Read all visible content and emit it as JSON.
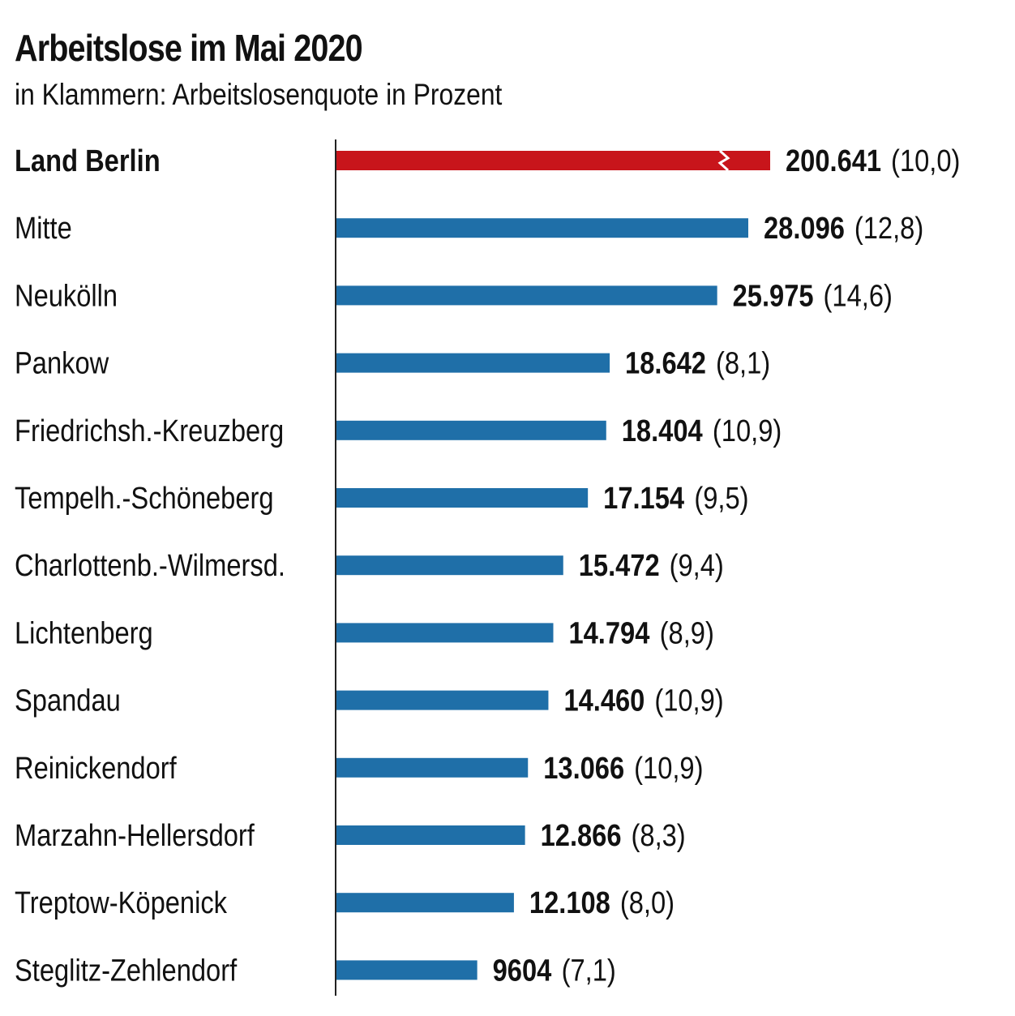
{
  "title": "Arbeitslose im Mai 2020",
  "subtitle": "in Klammern: Arbeitslosenquote in Prozent",
  "colors": {
    "highlight_bar": "#C8151B",
    "bar": "#1F6FA8",
    "axis": "#222222",
    "text": "#111111"
  },
  "chart_data": {
    "type": "bar",
    "orientation": "horizontal",
    "title": "Arbeitslose im Mai 2020",
    "subtitle": "in Klammern: Arbeitslosenquote in Prozent",
    "broken_axis_for": "Land Berlin",
    "categories": [
      "Land Berlin",
      "Mitte",
      "Neukölln",
      "Pankow",
      "Friedrichsh.-Kreuzberg",
      "Tempelh.-Schöneberg",
      "Charlottenb.-Wilmersd.",
      "Lichtenberg",
      "Spandau",
      "Reinickendorf",
      "Marzahn-Hellersdorf",
      "Treptow-Köpenick",
      "Steglitz-Zehlendorf"
    ],
    "values": [
      200641,
      28096,
      25975,
      18642,
      18404,
      17154,
      15472,
      14794,
      14460,
      13066,
      12866,
      12108,
      9604
    ],
    "value_labels": [
      "200.641",
      "28.096",
      "25.975",
      "18.642",
      "18.404",
      "17.154",
      "15.472",
      "14.794",
      "14.460",
      "13.066",
      "12.866",
      "12.108",
      "9604"
    ],
    "rates": [
      10.0,
      12.8,
      14.6,
      8.1,
      10.9,
      9.5,
      9.4,
      8.9,
      10.9,
      10.9,
      8.3,
      8.0,
      7.1
    ],
    "rate_labels": [
      "(10,0)",
      "(12,8)",
      "(14,6)",
      "(8,1)",
      "(10,9)",
      "(9,5)",
      "(9,4)",
      "(8,9)",
      "(10,9)",
      "(10,9)",
      "(8,3)",
      "(8,0)",
      "(7,1)"
    ],
    "highlighted": [
      "Land Berlin"
    ]
  }
}
